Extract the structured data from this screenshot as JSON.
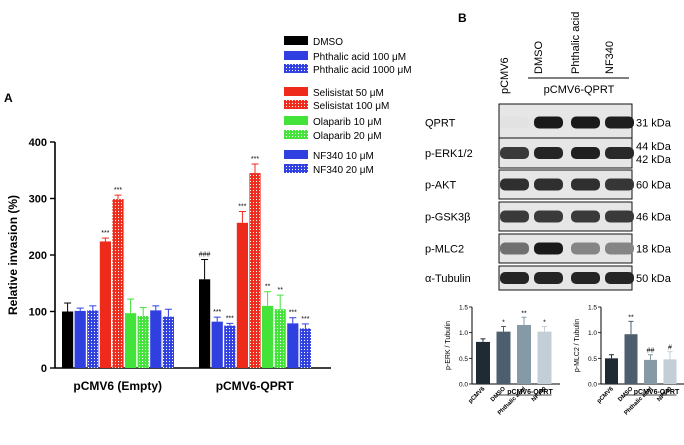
{
  "panel_labels": {
    "a": "A",
    "b": "B"
  },
  "legend": [
    {
      "label": "DMSO",
      "color": "#000000",
      "pattern": "solid"
    },
    {
      "label": "Phthalic acid 100 μM",
      "color": "#2f3fe0",
      "pattern": "solid"
    },
    {
      "label": "Phthalic acid 1000 μM",
      "color": "#2f3fe0",
      "pattern": "dotted"
    },
    {
      "label": "Selisistat 50 μM",
      "color": "#ee2a1b",
      "pattern": "solid"
    },
    {
      "label": "Selisistat 100 μM",
      "color": "#ee2a1b",
      "pattern": "dotted"
    },
    {
      "label": "Olaparib 10 μM",
      "color": "#44e33a",
      "pattern": "solid"
    },
    {
      "label": "Olaparib 20 μM",
      "color": "#44e33a",
      "pattern": "dotted"
    },
    {
      "label": "NF340 10 μM",
      "color": "#2f3fe0",
      "pattern": "solid"
    },
    {
      "label": "NF340 20 μM",
      "color": "#2f3fe0",
      "pattern": "dotted"
    }
  ],
  "chart_data": [
    {
      "type": "bar",
      "panel": "A",
      "ylabel": "Relative invasion (%)",
      "ylim": [
        0,
        400
      ],
      "yticks": [
        0,
        100,
        200,
        300,
        400
      ],
      "categories": [
        "pCMV6 (Empty)",
        "pCMV6-QPRT"
      ],
      "series": [
        {
          "name": "DMSO",
          "values": [
            100,
            157
          ],
          "errors": [
            15,
            35
          ],
          "sig": [
            "",
            "###"
          ]
        },
        {
          "name": "Phthalic acid 100 μM",
          "values": [
            101,
            82
          ],
          "errors": [
            5,
            8
          ],
          "sig": [
            "",
            "***"
          ]
        },
        {
          "name": "Phthalic acid 1000 μM",
          "values": [
            102,
            75
          ],
          "errors": [
            8,
            4
          ],
          "sig": [
            "",
            "***"
          ]
        },
        {
          "name": "Selisistat 50 μM",
          "values": [
            224,
            257
          ],
          "errors": [
            6,
            20
          ],
          "sig": [
            "***",
            "***"
          ]
        },
        {
          "name": "Selisistat 100 μM",
          "values": [
            299,
            345
          ],
          "errors": [
            7,
            16
          ],
          "sig": [
            "***",
            "***"
          ]
        },
        {
          "name": "Olaparib 10 μM",
          "values": [
            97,
            110
          ],
          "errors": [
            25,
            25
          ],
          "sig": [
            "",
            "**"
          ]
        },
        {
          "name": "Olaparib 20 μM",
          "values": [
            92,
            104
          ],
          "errors": [
            15,
            25
          ],
          "sig": [
            "",
            "**"
          ]
        },
        {
          "name": "NF340 10 μM",
          "values": [
            102,
            79
          ],
          "errors": [
            8,
            10
          ],
          "sig": [
            "",
            "***"
          ]
        },
        {
          "name": "NF340 20 μM",
          "values": [
            91,
            70
          ],
          "errors": [
            13,
            8
          ],
          "sig": [
            "",
            "***"
          ]
        }
      ]
    },
    {
      "type": "bar",
      "panel": "B-left",
      "ylabel": "p-ERK / Tubulin",
      "ylim": [
        0,
        1.5
      ],
      "yticks": [
        0.0,
        0.5,
        1.0,
        1.5
      ],
      "categories": [
        "pCMV6",
        "DMSO",
        "Phthalic acid",
        "NF340"
      ],
      "group_label": "pCMV6-QPRT",
      "values": [
        0.82,
        1.02,
        1.15,
        1.02
      ],
      "errors": [
        0.06,
        0.1,
        0.15,
        0.1
      ],
      "sig": [
        "",
        "*",
        "**",
        "*"
      ],
      "colors": [
        "#1f2a35",
        "#4d5f6e",
        "#869aa6",
        "#c3ced6"
      ]
    },
    {
      "type": "bar",
      "panel": "B-right",
      "ylabel": "p-MLC2 / Tubulin",
      "ylim": [
        0,
        1.5
      ],
      "yticks": [
        0.0,
        0.5,
        1.0,
        1.5
      ],
      "categories": [
        "pCMV6",
        "DMSO",
        "Phthalic acid",
        "NF340"
      ],
      "group_label": "pCMV6-QPRT",
      "values": [
        0.5,
        0.97,
        0.47,
        0.48
      ],
      "errors": [
        0.07,
        0.25,
        0.1,
        0.15
      ],
      "sig": [
        "",
        "**",
        "##",
        "#"
      ],
      "colors": [
        "#1f2a35",
        "#4d5f6e",
        "#869aa6",
        "#c3ced6"
      ]
    }
  ],
  "blot": {
    "lane_labels": [
      "pCMV6",
      "DMSO",
      "Phthalic acid",
      "NF340"
    ],
    "group_label": "pCMV6-QPRT",
    "rows": [
      {
        "protein": "QPRT",
        "kda": "31 kDa",
        "intensity": [
          0.02,
          0.95,
          0.95,
          0.93
        ]
      },
      {
        "protein": "p-ERK1/2",
        "kda": "44 kDa\n42 kDa",
        "intensity": [
          0.8,
          0.9,
          0.92,
          0.88
        ]
      },
      {
        "protein": "p-AKT",
        "kda": "60 kDa",
        "intensity": [
          0.85,
          0.85,
          0.85,
          0.82
        ]
      },
      {
        "protein": "p-GSK3β",
        "kda": "46 kDa",
        "intensity": [
          0.8,
          0.8,
          0.8,
          0.8
        ]
      },
      {
        "protein": "p-MLC2",
        "kda": "18 kDa",
        "intensity": [
          0.55,
          0.95,
          0.45,
          0.45
        ]
      },
      {
        "protein": "α-Tubulin",
        "kda": "50 kDa",
        "intensity": [
          0.9,
          0.9,
          0.9,
          0.9
        ]
      }
    ]
  }
}
